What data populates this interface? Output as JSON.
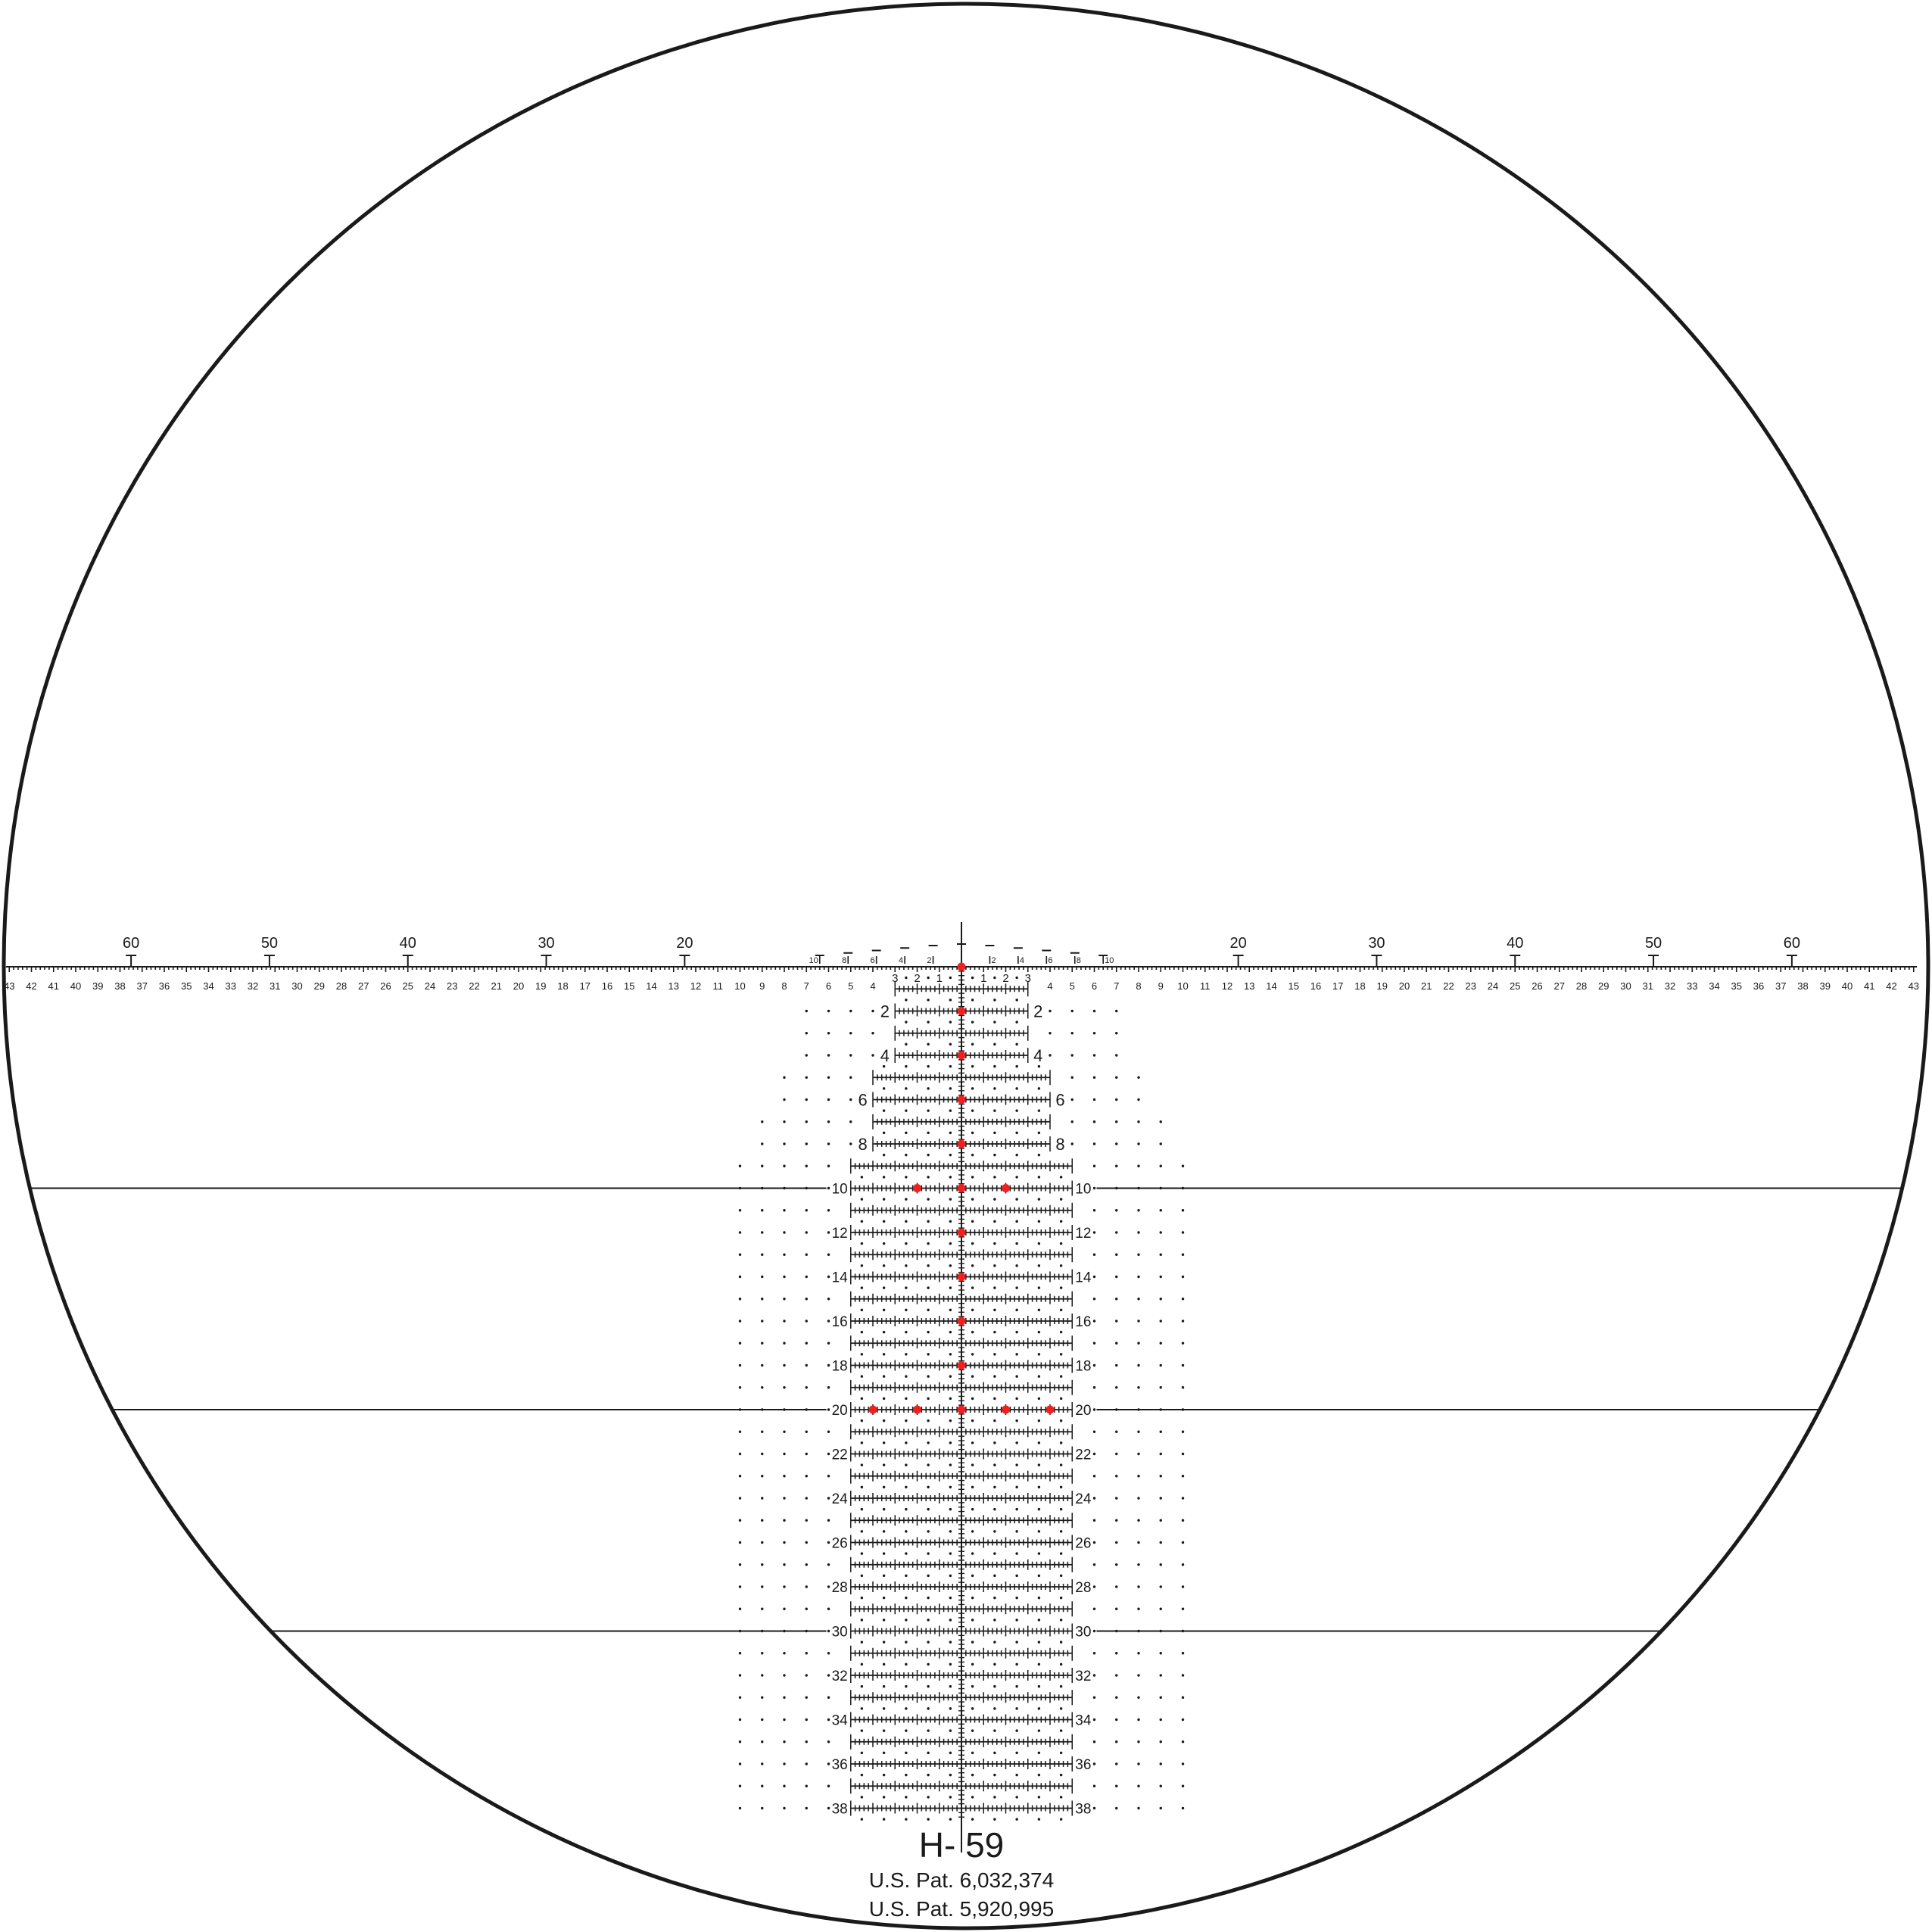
{
  "reticle": {
    "model": "H- 59",
    "patents": [
      "U.S. Pat.  6,032,374",
      "U.S. Pat.  5,920,995"
    ]
  },
  "colors": {
    "lines": "#1a1a1a",
    "aim_dots": "#ee2020",
    "background": "#ffffff"
  },
  "horizontal_scale": {
    "center_labels": [
      "1",
      "2",
      "3"
    ],
    "labels": [
      "4",
      "5",
      "6",
      "7",
      "8",
      "9",
      "10",
      "11",
      "12",
      "13",
      "14",
      "15",
      "16",
      "17",
      "18",
      "19",
      "20",
      "21",
      "22",
      "23",
      "24",
      "25",
      "26",
      "27",
      "28",
      "29",
      "30",
      "31",
      "32",
      "33",
      "34",
      "35",
      "36",
      "37",
      "38",
      "39",
      "40",
      "41",
      "42",
      "43"
    ]
  },
  "range_markers": {
    "large": [
      "20",
      "30",
      "40",
      "50",
      "60"
    ],
    "small": [
      "2",
      "4",
      "6",
      "8",
      "10"
    ]
  },
  "ladder": {
    "rows": 38,
    "row_labels": [
      "2",
      "4",
      "6",
      "8",
      "10",
      "12",
      "14",
      "16",
      "18",
      "20",
      "22",
      "24",
      "26",
      "28",
      "30",
      "32",
      "34",
      "36",
      "38"
    ],
    "extended_lines_at_rows": [
      10,
      20,
      30
    ]
  },
  "aim_points": [
    {
      "row": 0,
      "x": 0
    },
    {
      "row": 2,
      "x": 0
    },
    {
      "row": 4,
      "x": 0
    },
    {
      "row": 6,
      "x": 0
    },
    {
      "row": 8,
      "x": 0
    },
    {
      "row": 10,
      "x": -2
    },
    {
      "row": 10,
      "x": 0
    },
    {
      "row": 10,
      "x": 2
    },
    {
      "row": 12,
      "x": 0
    },
    {
      "row": 14,
      "x": 0
    },
    {
      "row": 16,
      "x": 0
    },
    {
      "row": 18,
      "x": 0
    },
    {
      "row": 20,
      "x": -4
    },
    {
      "row": 20,
      "x": -2
    },
    {
      "row": 20,
      "x": 0
    },
    {
      "row": 20,
      "x": 2
    },
    {
      "row": 20,
      "x": 4
    }
  ]
}
